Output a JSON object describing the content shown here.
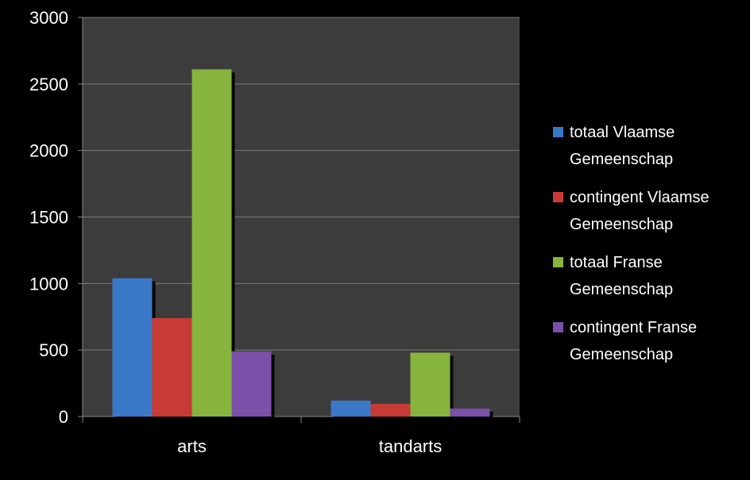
{
  "chart_data": {
    "type": "bar",
    "categories": [
      "arts",
      "tandarts"
    ],
    "series": [
      {
        "name": "totaal Vlaamse Gemeenschap",
        "name_lines": [
          "totaal Vlaamse",
          "Gemeenschap"
        ],
        "color": "#3a78c8",
        "values": [
          1040,
          120
        ]
      },
      {
        "name": "contingent Vlaamse Gemeenschap",
        "name_lines": [
          "contingent Vlaamse",
          "Gemeenschap"
        ],
        "color": "#c83a36",
        "values": [
          740,
          95
        ]
      },
      {
        "name": "totaal Franse Gemeenschap",
        "name_lines": [
          "totaal Franse",
          "Gemeenschap"
        ],
        "color": "#86b43c",
        "values": [
          2610,
          480
        ]
      },
      {
        "name": "contingent Franse Gemeenschap",
        "name_lines": [
          "contingent Franse",
          "Gemeenschap"
        ],
        "color": "#7a50a8",
        "values": [
          490,
          60
        ]
      }
    ],
    "yticks": [
      "0",
      "500",
      "1000",
      "1500",
      "2000",
      "2500",
      "3000"
    ],
    "ylim": [
      0,
      3000
    ],
    "grid": true,
    "legend": "right",
    "colors": {
      "plot_background": "#3c3c3c",
      "page_background": "#000000",
      "gridline": "#7a7a7a",
      "text": "#ffffff"
    }
  }
}
